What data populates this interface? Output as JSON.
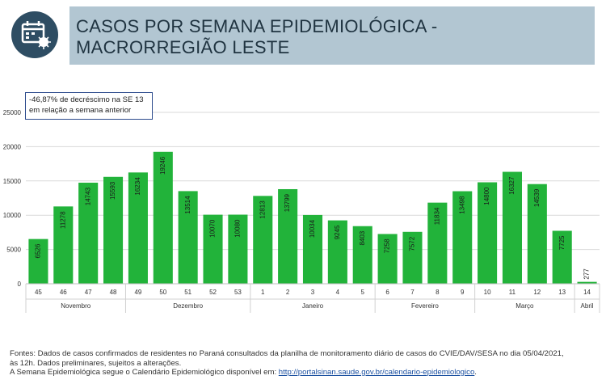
{
  "header": {
    "title": "CASOS POR SEMANA EPIDEMIOLÓGICA - MACRORREGIÃO LESTE",
    "icon": "calendar-virus-icon",
    "band_color": "#b2c6d2",
    "icon_color": "#2e4d63"
  },
  "annotation": "-46,87% de decréscimo na SE 13 em relação a semana anterior",
  "chart_data": {
    "type": "bar",
    "title": "",
    "xlabel": "",
    "ylabel": "",
    "ylim": [
      0,
      25000
    ],
    "yticks": [
      0,
      5000,
      10000,
      15000,
      20000,
      25000
    ],
    "grid": true,
    "bar_color": "#22b33a",
    "categories": [
      "45",
      "46",
      "47",
      "48",
      "49",
      "50",
      "51",
      "52",
      "53",
      "1",
      "2",
      "3",
      "4",
      "5",
      "6",
      "7",
      "8",
      "9",
      "10",
      "11",
      "12",
      "13",
      "14"
    ],
    "values": [
      6526,
      11278,
      14743,
      15593,
      16234,
      19246,
      13514,
      10070,
      10080,
      12813,
      13799,
      10034,
      9245,
      8403,
      7258,
      7572,
      11834,
      13498,
      14800,
      16327,
      14539,
      7725,
      277
    ],
    "value_labels": [
      "6526",
      "11278",
      "14743",
      "15593",
      "16234",
      "19246",
      "13514",
      "10070",
      "10080",
      "12813",
      "13799",
      "10034",
      "9245",
      "8403",
      "7258",
      "7572",
      "11834",
      "13498",
      "14800",
      "16327",
      "14539",
      "7725",
      "277"
    ],
    "months": [
      {
        "label": "Novembro",
        "span": 4
      },
      {
        "label": "Dezembro",
        "span": 5
      },
      {
        "label": "Janeiro",
        "span": 5
      },
      {
        "label": "Fevereiro",
        "span": 4
      },
      {
        "label": "Março",
        "span": 4
      },
      {
        "label": "Abril",
        "span": 1
      }
    ]
  },
  "footer": {
    "line1": "Fontes: Dados de casos confirmados de residentes no Paraná consultados da planilha de monitoramento diário de casos do CVIE/DAV/SESA no dia 05/04/2021,",
    "line2": "às 12h. Dados preliminares, sujeitos a alterações.",
    "line3_prefix": "A Semana Epidemiológica segue o Calendário Epidemiológico disponível em: ",
    "link": "http://portalsinan.saude.gov.br/calendario-epidemiologico",
    "line3_suffix": "."
  }
}
